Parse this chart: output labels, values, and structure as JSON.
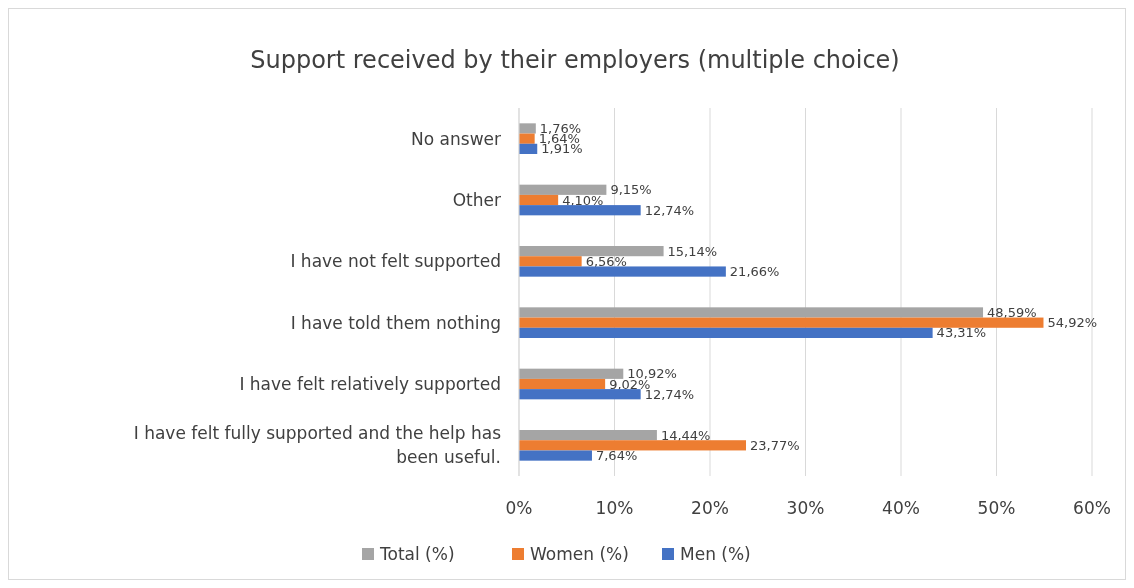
{
  "chart_data": {
    "type": "bar",
    "orientation": "horizontal",
    "title": "Support received by their employers (multiple choice)",
    "categories": [
      "No answer",
      "Other",
      "I have not felt supported",
      "I have told them nothing",
      "I have felt relatively supported",
      "I have felt fully supported and the help has been useful."
    ],
    "series": [
      {
        "name": "Total (%)",
        "color": "#a5a5a5",
        "values": [
          1.76,
          9.15,
          15.14,
          48.59,
          10.92,
          14.44
        ],
        "value_labels": [
          "1,76%",
          "9,15%",
          "15,14%",
          "48,59%",
          "10,92%",
          "14,44%"
        ]
      },
      {
        "name": "Women (%)",
        "color": "#ed7d31",
        "values": [
          1.64,
          4.1,
          6.56,
          54.92,
          9.02,
          23.77
        ],
        "value_labels": [
          "1,64%",
          "4,10%",
          "6,56%",
          "54,92%",
          "9,02%",
          "23,77%"
        ]
      },
      {
        "name": "Men (%)",
        "color": "#4472c4",
        "values": [
          1.91,
          12.74,
          21.66,
          43.31,
          12.74,
          7.64
        ],
        "value_labels": [
          "1,91%",
          "12,74%",
          "21,66%",
          "43,31%",
          "12,74%",
          "7,64%"
        ]
      }
    ],
    "xlim": [
      0,
      60
    ],
    "xticks": [
      {
        "value": 0,
        "label": "0%"
      },
      {
        "value": 10,
        "label": "10%"
      },
      {
        "value": 20,
        "label": "20%"
      },
      {
        "value": 30,
        "label": "30%"
      },
      {
        "value": 40,
        "label": "40%"
      },
      {
        "value": 50,
        "label": "50%"
      },
      {
        "value": 60,
        "label": "60%"
      }
    ],
    "grid": "x",
    "legend": "bottom"
  }
}
